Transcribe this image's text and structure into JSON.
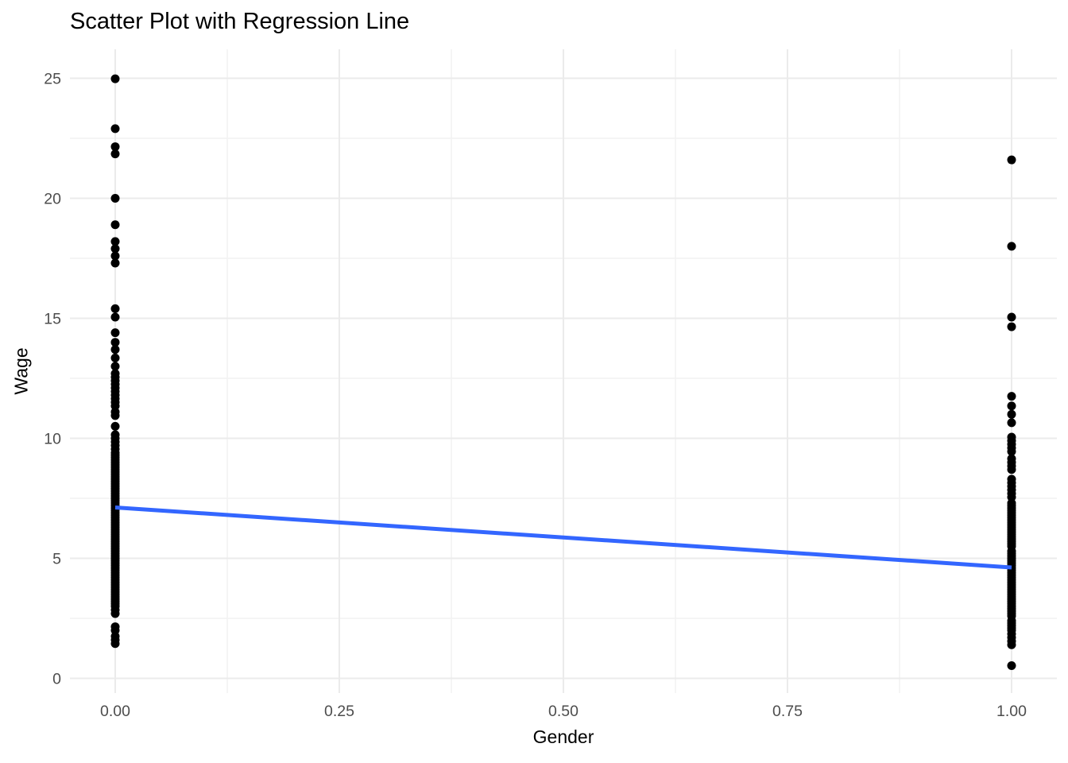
{
  "chart_data": {
    "type": "scatter",
    "title": "Scatter Plot with Regression Line",
    "xlabel": "Gender",
    "ylabel": "Wage",
    "xlim": [
      -0.05,
      1.05
    ],
    "ylim": [
      -0.7,
      26.2
    ],
    "grid": true,
    "legend": "none",
    "colors": {
      "point": "#000000",
      "regression_line": "#3366FF",
      "grid_major": "#EBEBEB",
      "grid_minor": "#F2F2F2",
      "tick_text": "#4D4D4D",
      "title_text": "#000000",
      "background": "#FFFFFF"
    },
    "x_ticks": [
      {
        "value": 0,
        "label": "0.00"
      },
      {
        "value": 0.25,
        "label": "0.25"
      },
      {
        "value": 0.5,
        "label": "0.50"
      },
      {
        "value": 0.75,
        "label": "0.75"
      },
      {
        "value": 1,
        "label": "1.00"
      }
    ],
    "x_minor_ticks": [
      0.125,
      0.375,
      0.625,
      0.875
    ],
    "y_ticks": [
      {
        "value": 0,
        "label": "0"
      },
      {
        "value": 5,
        "label": "5"
      },
      {
        "value": 10,
        "label": "10"
      },
      {
        "value": 15,
        "label": "15"
      },
      {
        "value": 20,
        "label": "20"
      },
      {
        "value": 25,
        "label": "25"
      }
    ],
    "y_minor_ticks": [
      2.5,
      7.5,
      12.5,
      17.5,
      22.5
    ],
    "series": [
      {
        "name": "gender-0",
        "x": 0,
        "wages": [
          24.98,
          22.9,
          22.15,
          21.85,
          20.0,
          18.9,
          18.2,
          17.9,
          17.6,
          17.3,
          15.4,
          15.05,
          14.4,
          14.0,
          13.7,
          13.35,
          13.0,
          12.7,
          12.55,
          12.4,
          12.25,
          12.1,
          11.95,
          11.8,
          11.65,
          11.5,
          11.35,
          11.1,
          10.95,
          10.5,
          10.15,
          10.0,
          9.85,
          9.7,
          9.55,
          9.4,
          9.3,
          9.2,
          9.1,
          9.0,
          8.9,
          8.8,
          8.7,
          8.6,
          8.5,
          8.4,
          8.3,
          8.2,
          8.1,
          8.0,
          7.9,
          7.8,
          7.7,
          7.6,
          7.5,
          7.4,
          7.3,
          7.2,
          7.1,
          7.0,
          6.9,
          6.8,
          6.7,
          6.6,
          6.5,
          6.4,
          6.3,
          6.2,
          6.1,
          6.0,
          5.9,
          5.8,
          5.7,
          5.6,
          5.5,
          5.4,
          5.3,
          5.2,
          5.1,
          5.0,
          4.9,
          4.8,
          4.7,
          4.6,
          4.5,
          4.4,
          4.3,
          4.2,
          4.1,
          4.0,
          3.9,
          3.8,
          3.7,
          3.6,
          3.5,
          3.4,
          3.3,
          3.2,
          3.1,
          3.0,
          2.85,
          2.7,
          2.15,
          2.0,
          1.75,
          1.6,
          1.45
        ]
      },
      {
        "name": "gender-1",
        "x": 1,
        "wages": [
          21.6,
          18.0,
          15.05,
          14.65,
          11.75,
          11.35,
          11.0,
          10.65,
          10.05,
          9.9,
          9.75,
          9.6,
          9.45,
          9.15,
          9.0,
          8.85,
          8.7,
          8.3,
          8.15,
          8.0,
          7.85,
          7.7,
          7.55,
          7.3,
          7.2,
          7.1,
          7.0,
          6.9,
          6.8,
          6.7,
          6.6,
          6.5,
          6.4,
          6.3,
          6.2,
          6.1,
          6.0,
          5.9,
          5.8,
          5.7,
          5.6,
          5.5,
          5.3,
          5.2,
          5.1,
          5.0,
          4.9,
          4.8,
          4.7,
          4.6,
          4.5,
          4.4,
          4.3,
          4.2,
          4.1,
          4.0,
          3.9,
          3.8,
          3.7,
          3.6,
          3.5,
          3.4,
          3.3,
          3.2,
          3.1,
          3.0,
          2.9,
          2.8,
          2.7,
          2.6,
          2.4,
          2.3,
          2.2,
          2.1,
          2.0,
          1.85,
          1.7,
          1.55,
          1.4,
          0.53
        ]
      }
    ],
    "regression_line": {
      "x": [
        0,
        1
      ],
      "y": [
        7.12,
        4.62
      ]
    }
  }
}
